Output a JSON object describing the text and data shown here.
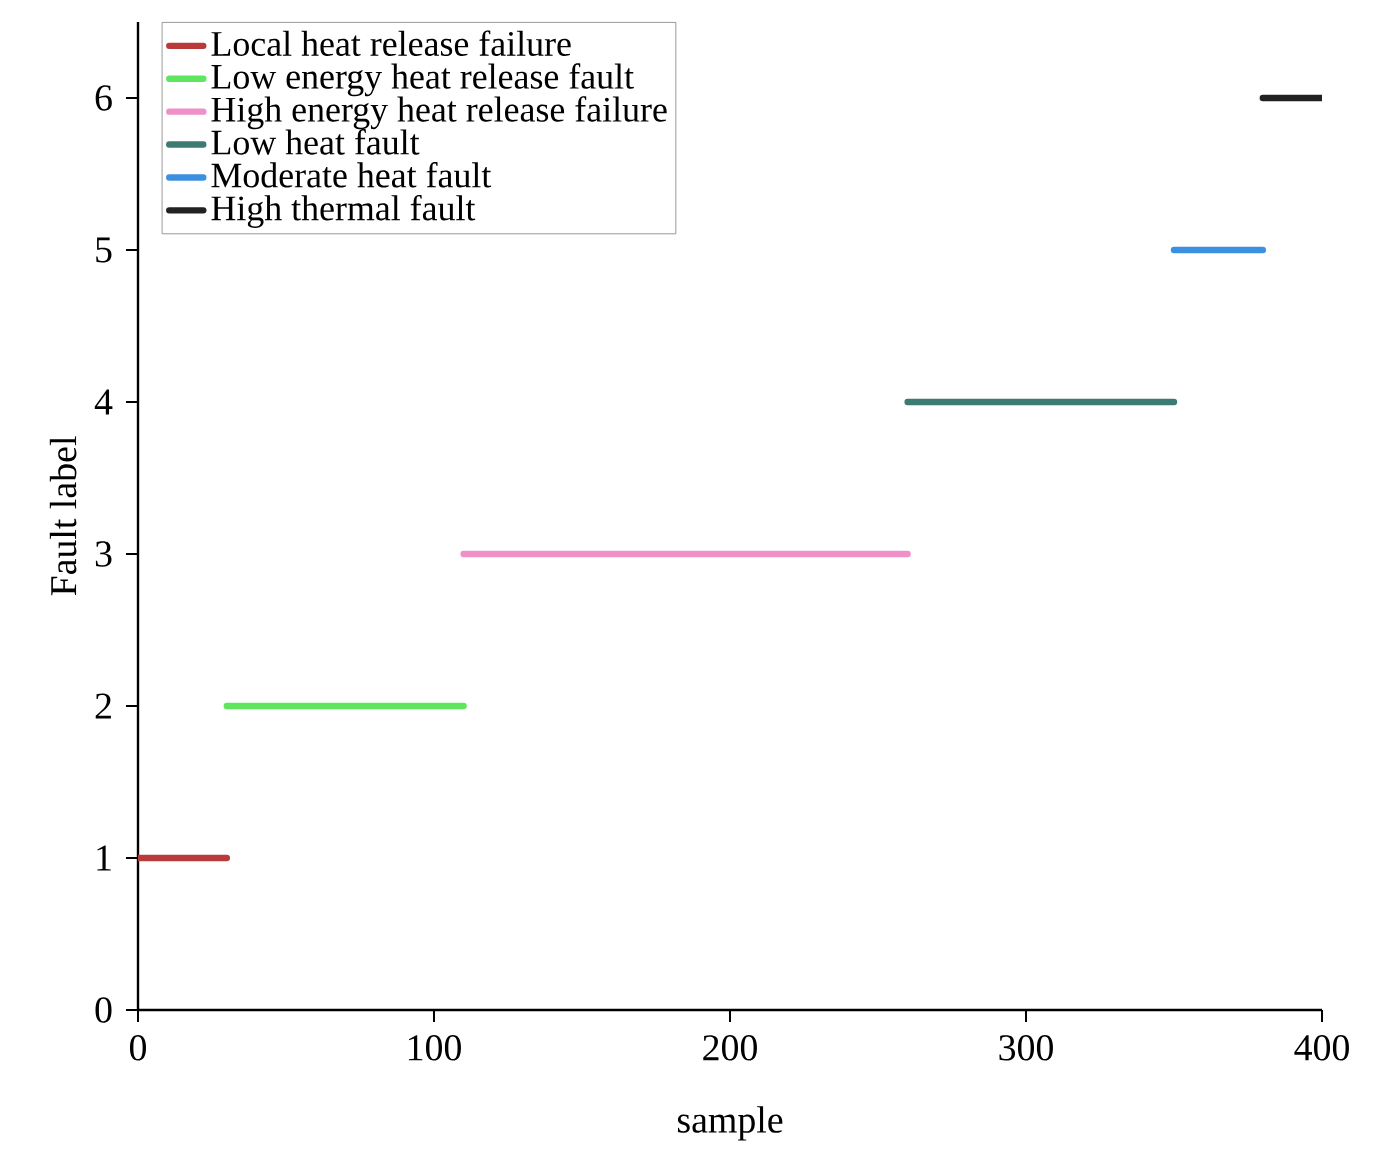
{
  "chart_data": {
    "type": "line",
    "xlabel": "sample",
    "ylabel": "Fault label",
    "xlim": [
      0,
      400
    ],
    "ylim": [
      0,
      6.5
    ],
    "xticks": [
      0,
      100,
      200,
      300,
      400
    ],
    "yticks": [
      0,
      1,
      2,
      3,
      4,
      5,
      6
    ],
    "legend": "top left",
    "grid": false,
    "marker": "none",
    "line_style": "solid",
    "series": [
      {
        "name": "Local heat release failure",
        "color": "#b83a3a",
        "x": [
          0,
          30
        ],
        "values": [
          1,
          1
        ]
      },
      {
        "name": "Low energy heat release fault",
        "color": "#5ee65e",
        "x": [
          30,
          110
        ],
        "values": [
          2,
          2
        ]
      },
      {
        "name": "High energy heat release failure",
        "color": "#f090c8",
        "x": [
          110,
          260
        ],
        "values": [
          3,
          3
        ]
      },
      {
        "name": "Low heat fault",
        "color": "#3d7a72",
        "x": [
          260,
          350
        ],
        "values": [
          4,
          4
        ]
      },
      {
        "name": "Moderate heat fault",
        "color": "#3c90e0",
        "x": [
          350,
          380
        ],
        "values": [
          5,
          5
        ]
      },
      {
        "name": "High thermal fault",
        "color": "#222222",
        "x": [
          380,
          400
        ],
        "values": [
          6,
          6
        ]
      }
    ]
  }
}
